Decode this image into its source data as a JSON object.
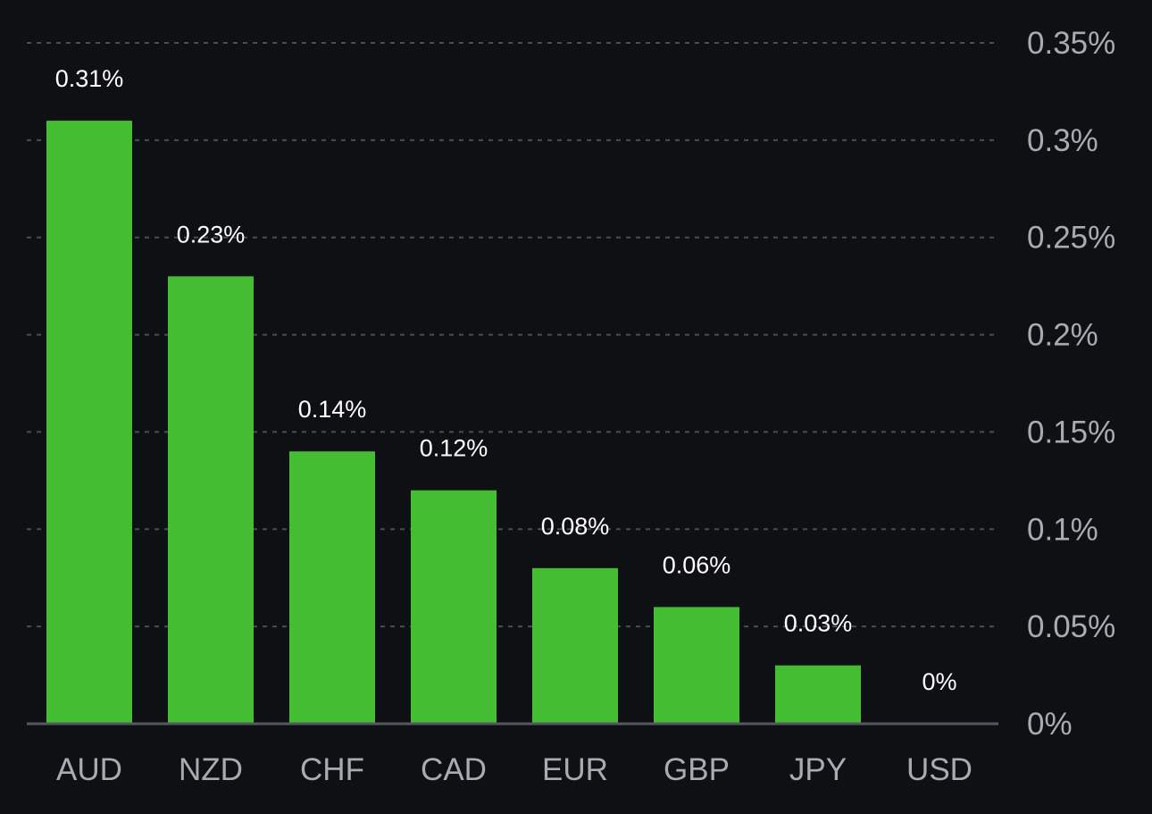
{
  "colors": {
    "background": "#0f1013",
    "bar": "#44bd32",
    "grid": "#4b4d55",
    "axis_text": "#a9abb1",
    "value_text": "#ffffff"
  },
  "chart_data": {
    "type": "bar",
    "categories": [
      "AUD",
      "NZD",
      "CHF",
      "CAD",
      "EUR",
      "GBP",
      "JPY",
      "USD"
    ],
    "values": [
      0.31,
      0.23,
      0.14,
      0.12,
      0.08,
      0.06,
      0.03,
      0
    ],
    "data_labels": [
      "0.31%",
      "0.23%",
      "0.14%",
      "0.12%",
      "0.08%",
      "0.06%",
      "0.03%",
      "0%"
    ],
    "y_ticks": [
      0,
      0.05,
      0.1,
      0.15,
      0.2,
      0.25,
      0.3,
      0.35
    ],
    "y_tick_labels": [
      "0%",
      "0.05%",
      "0.1%",
      "0.15%",
      "0.2%",
      "0.25%",
      "0.3%",
      "0.35%"
    ],
    "ylim": [
      0,
      0.35
    ],
    "y_axis_position": "right",
    "grid": true,
    "title": "",
    "xlabel": "",
    "ylabel": ""
  }
}
